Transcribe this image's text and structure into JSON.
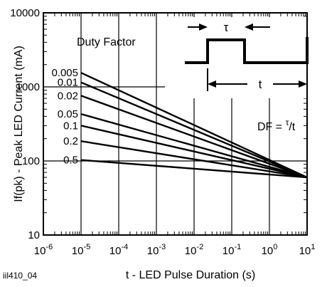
{
  "chart_data": {
    "type": "line",
    "xscale": "log",
    "yscale": "log",
    "xlim": [
      1e-06,
      10
    ],
    "ylim": [
      10,
      10000
    ],
    "xlabel": "t - LED Pulse Duration (s)",
    "ylabel": "If(pk) - Peak LED Current (mA)",
    "x_ticks": [
      {
        "base": "10",
        "exp": "-6"
      },
      {
        "base": "10",
        "exp": "-5"
      },
      {
        "base": "10",
        "exp": "-4"
      },
      {
        "base": "10",
        "exp": "-3"
      },
      {
        "base": "10",
        "exp": "-2"
      },
      {
        "base": "10",
        "exp": "-1"
      },
      {
        "base": "10",
        "exp": "0"
      },
      {
        "base": "10",
        "exp": "1"
      }
    ],
    "y_ticks": [
      "10",
      "100",
      "1000",
      "10000"
    ],
    "grid": true,
    "legend_title": "Duty Factor",
    "series": [
      {
        "name": "0.005",
        "x": [
          1e-05,
          10
        ],
        "y": [
          1550,
          60
        ]
      },
      {
        "name": "0.01",
        "x": [
          1e-05,
          10
        ],
        "y": [
          1150,
          60
        ]
      },
      {
        "name": "0.02",
        "x": [
          1e-05,
          10
        ],
        "y": [
          760,
          60
        ]
      },
      {
        "name": "0.05",
        "x": [
          1e-05,
          10
        ],
        "y": [
          430,
          60
        ]
      },
      {
        "name": "0.1",
        "x": [
          1e-05,
          10
        ],
        "y": [
          300,
          60
        ]
      },
      {
        "name": "0.2",
        "x": [
          1e-05,
          10
        ],
        "y": [
          185,
          60
        ]
      },
      {
        "name": "0.5",
        "x": [
          1e-05,
          10
        ],
        "y": [
          103,
          60
        ]
      }
    ],
    "inset": {
      "tau_label": "τ",
      "t_label": "t",
      "formula_prefix": "DF = ",
      "formula_tau": "τ",
      "formula_suffix": "/t"
    },
    "figure_id": "iil410_04"
  }
}
